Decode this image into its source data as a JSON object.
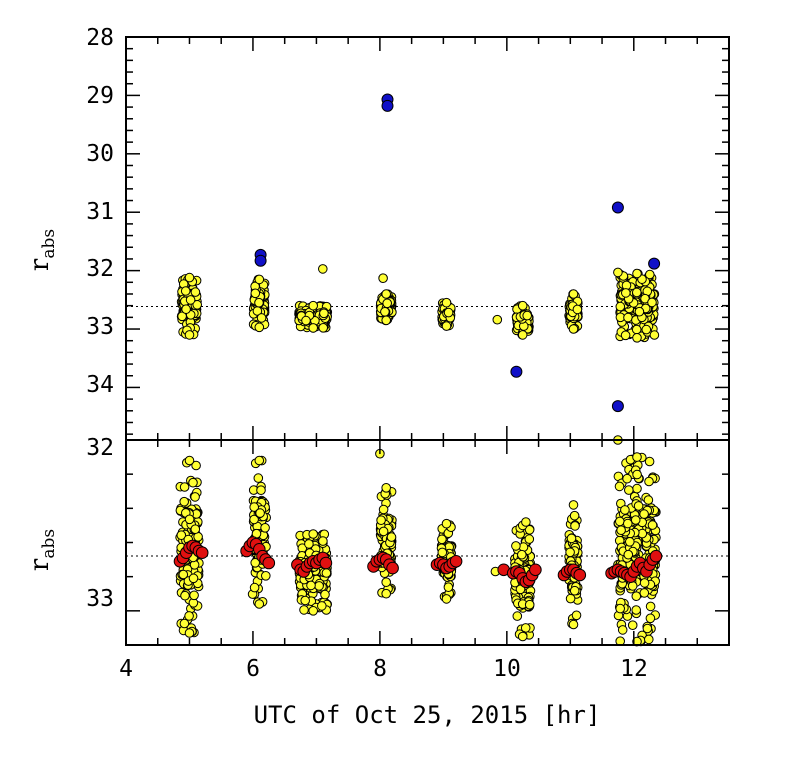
{
  "chart_data": [
    {
      "type": "scatter",
      "panel": "top",
      "ylabel": "r",
      "ylabel_subscript": "abs",
      "xlim": [
        4,
        13.5
      ],
      "ylim": [
        34.9,
        28
      ],
      "y_inverted": true,
      "y_ticks": [
        "28",
        "29",
        "30",
        "31",
        "32",
        "33",
        "34"
      ],
      "reference_line": 32.72,
      "colors": {
        "points": "#ffff33",
        "outliers": "#1010c8",
        "reference": "#000000"
      },
      "clusters": [
        {
          "x": 5.0,
          "y_min": 32.12,
          "y_max": 33.1,
          "width": 0.25
        },
        {
          "x": 6.1,
          "y_min": 32.15,
          "y_max": 32.97,
          "width": 0.18
        },
        {
          "x": 6.95,
          "y_min": 32.6,
          "y_max": 32.98,
          "width": 0.45
        },
        {
          "x": 8.1,
          "y_min": 32.4,
          "y_max": 32.85,
          "width": 0.18
        },
        {
          "x": 9.05,
          "y_min": 32.55,
          "y_max": 32.95,
          "width": 0.14
        },
        {
          "x": 10.25,
          "y_min": 32.6,
          "y_max": 33.1,
          "width": 0.2
        },
        {
          "x": 11.05,
          "y_min": 32.4,
          "y_max": 33.0,
          "width": 0.14
        },
        {
          "x": 12.05,
          "y_min": 32.05,
          "y_max": 33.15,
          "width": 0.55
        }
      ],
      "extra_points": [
        {
          "x": 7.1,
          "y": 31.97
        },
        {
          "x": 8.05,
          "y": 32.13
        },
        {
          "x": 9.85,
          "y": 32.84
        },
        {
          "x": 11.75,
          "y": 32.03
        }
      ],
      "outliers": [
        {
          "x": 6.12,
          "y": 31.73
        },
        {
          "x": 6.12,
          "y": 31.83
        },
        {
          "x": 8.12,
          "y": 29.07
        },
        {
          "x": 8.12,
          "y": 29.18
        },
        {
          "x": 10.15,
          "y": 33.73
        },
        {
          "x": 11.75,
          "y": 30.92
        },
        {
          "x": 12.32,
          "y": 31.88
        },
        {
          "x": 11.75,
          "y": 34.32
        }
      ]
    },
    {
      "type": "scatter",
      "panel": "bottom",
      "xlabel": "UTC of Oct 25, 2015 [hr]",
      "ylabel": "r",
      "ylabel_subscript": "abs",
      "xlim": [
        4,
        13.5
      ],
      "ylim": [
        33.2,
        32
      ],
      "y_inverted": true,
      "x_ticks": [
        "4",
        "6",
        "8",
        "10",
        "12"
      ],
      "y_ticks": [
        "32",
        "33"
      ],
      "reference_line": 32.72,
      "colors": {
        "points": "#ffff33",
        "binned": "#e01010",
        "reference": "#000000"
      },
      "clusters": [
        {
          "x": 5.0,
          "y_min": 32.12,
          "y_max": 33.13,
          "width": 0.3
        },
        {
          "x": 6.1,
          "y_min": 32.12,
          "y_max": 32.96,
          "width": 0.22
        },
        {
          "x": 6.95,
          "y_min": 32.55,
          "y_max": 33.0,
          "width": 0.45
        },
        {
          "x": 8.1,
          "y_min": 32.28,
          "y_max": 32.9,
          "width": 0.18
        },
        {
          "x": 9.05,
          "y_min": 32.49,
          "y_max": 32.93,
          "width": 0.16
        },
        {
          "x": 10.25,
          "y_min": 32.5,
          "y_max": 33.15,
          "width": 0.25
        },
        {
          "x": 11.05,
          "y_min": 32.38,
          "y_max": 33.08,
          "width": 0.14
        },
        {
          "x": 12.05,
          "y_min": 32.1,
          "y_max": 33.18,
          "width": 0.6
        }
      ],
      "extra_points": [
        {
          "x": 8.0,
          "y": 32.08
        },
        {
          "x": 11.75,
          "y": 32.0
        },
        {
          "x": 9.82,
          "y": 32.77
        },
        {
          "x": 10.3,
          "y": 32.48
        }
      ],
      "binned_points": [
        {
          "x": 4.85,
          "y": 32.71
        },
        {
          "x": 4.9,
          "y": 32.69
        },
        {
          "x": 4.95,
          "y": 32.66
        },
        {
          "x": 5.0,
          "y": 32.63
        },
        {
          "x": 5.05,
          "y": 32.62
        },
        {
          "x": 5.1,
          "y": 32.63
        },
        {
          "x": 5.15,
          "y": 32.65
        },
        {
          "x": 5.2,
          "y": 32.66
        },
        {
          "x": 5.9,
          "y": 32.65
        },
        {
          "x": 5.95,
          "y": 32.62
        },
        {
          "x": 6.0,
          "y": 32.6
        },
        {
          "x": 6.05,
          "y": 32.61
        },
        {
          "x": 6.1,
          "y": 32.64
        },
        {
          "x": 6.15,
          "y": 32.68
        },
        {
          "x": 6.2,
          "y": 32.7
        },
        {
          "x": 6.25,
          "y": 32.72
        },
        {
          "x": 6.7,
          "y": 32.73
        },
        {
          "x": 6.75,
          "y": 32.76
        },
        {
          "x": 6.8,
          "y": 32.77
        },
        {
          "x": 6.85,
          "y": 32.74
        },
        {
          "x": 6.9,
          "y": 32.72
        },
        {
          "x": 6.95,
          "y": 32.71
        },
        {
          "x": 7.0,
          "y": 32.72
        },
        {
          "x": 7.05,
          "y": 32.7
        },
        {
          "x": 7.1,
          "y": 32.69
        },
        {
          "x": 7.15,
          "y": 32.72
        },
        {
          "x": 7.9,
          "y": 32.74
        },
        {
          "x": 7.95,
          "y": 32.71
        },
        {
          "x": 8.0,
          "y": 32.7
        },
        {
          "x": 8.05,
          "y": 32.69
        },
        {
          "x": 8.1,
          "y": 32.7
        },
        {
          "x": 8.15,
          "y": 32.73
        },
        {
          "x": 8.2,
          "y": 32.75
        },
        {
          "x": 8.9,
          "y": 32.73
        },
        {
          "x": 8.95,
          "y": 32.72
        },
        {
          "x": 9.0,
          "y": 32.73
        },
        {
          "x": 9.05,
          "y": 32.75
        },
        {
          "x": 9.1,
          "y": 32.74
        },
        {
          "x": 9.15,
          "y": 32.72
        },
        {
          "x": 9.2,
          "y": 32.71
        },
        {
          "x": 9.95,
          "y": 32.76
        },
        {
          "x": 10.1,
          "y": 32.78
        },
        {
          "x": 10.15,
          "y": 32.77
        },
        {
          "x": 10.2,
          "y": 32.78
        },
        {
          "x": 10.25,
          "y": 32.81
        },
        {
          "x": 10.3,
          "y": 32.83
        },
        {
          "x": 10.35,
          "y": 32.82
        },
        {
          "x": 10.4,
          "y": 32.79
        },
        {
          "x": 10.45,
          "y": 32.76
        },
        {
          "x": 10.9,
          "y": 32.79
        },
        {
          "x": 10.95,
          "y": 32.77
        },
        {
          "x": 11.0,
          "y": 32.76
        },
        {
          "x": 11.05,
          "y": 32.76
        },
        {
          "x": 11.1,
          "y": 32.78
        },
        {
          "x": 11.15,
          "y": 32.79
        },
        {
          "x": 11.65,
          "y": 32.78
        },
        {
          "x": 11.7,
          "y": 32.77
        },
        {
          "x": 11.75,
          "y": 32.76
        },
        {
          "x": 11.8,
          "y": 32.77
        },
        {
          "x": 11.85,
          "y": 32.78
        },
        {
          "x": 11.9,
          "y": 32.79
        },
        {
          "x": 11.95,
          "y": 32.8
        },
        {
          "x": 12.0,
          "y": 32.77
        },
        {
          "x": 12.05,
          "y": 32.74
        },
        {
          "x": 12.1,
          "y": 32.72
        },
        {
          "x": 12.15,
          "y": 32.75
        },
        {
          "x": 12.2,
          "y": 32.77
        },
        {
          "x": 12.25,
          "y": 32.73
        },
        {
          "x": 12.3,
          "y": 32.7
        },
        {
          "x": 12.35,
          "y": 32.68
        }
      ]
    }
  ]
}
